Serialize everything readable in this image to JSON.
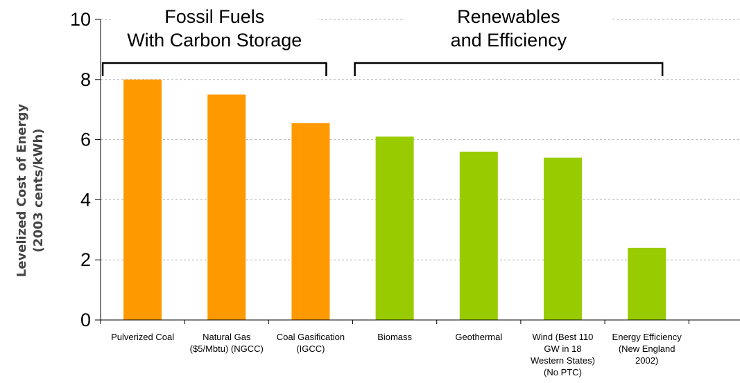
{
  "chart_data": {
    "type": "bar",
    "ylabel_lines": [
      "Levelized Cost of Energy",
      "(2003 cents/kWh)"
    ],
    "ylim": [
      0,
      10
    ],
    "yticks": [
      "0",
      "2",
      "4",
      "6",
      "8",
      "10"
    ],
    "grid": true,
    "categories": [
      [
        "Pulverized Coal"
      ],
      [
        "Natural Gas",
        "($5/Mbtu) (NGCC)"
      ],
      [
        "Coal Gasification",
        "(IGCC)"
      ],
      [
        "Biomass"
      ],
      [
        "Geothermal"
      ],
      [
        "Wind (Best 110",
        "GW in 18",
        "Western States)",
        "(No PTC)"
      ],
      [
        "Energy Efficiency",
        "(New England",
        "2002)"
      ]
    ],
    "values": [
      8.0,
      7.5,
      6.55,
      6.1,
      5.6,
      5.4,
      2.4
    ],
    "bar_colors": [
      "#ff9900",
      "#ff9900",
      "#ff9900",
      "#99cc00",
      "#99cc00",
      "#99cc00",
      "#99cc00"
    ],
    "groups": [
      {
        "label_lines": [
          "Fossil Fuels",
          "With Carbon Storage"
        ],
        "categories": [
          0,
          2
        ]
      },
      {
        "label_lines": [
          "Renewables",
          "and Efficiency"
        ],
        "categories": [
          3,
          6
        ]
      }
    ]
  }
}
